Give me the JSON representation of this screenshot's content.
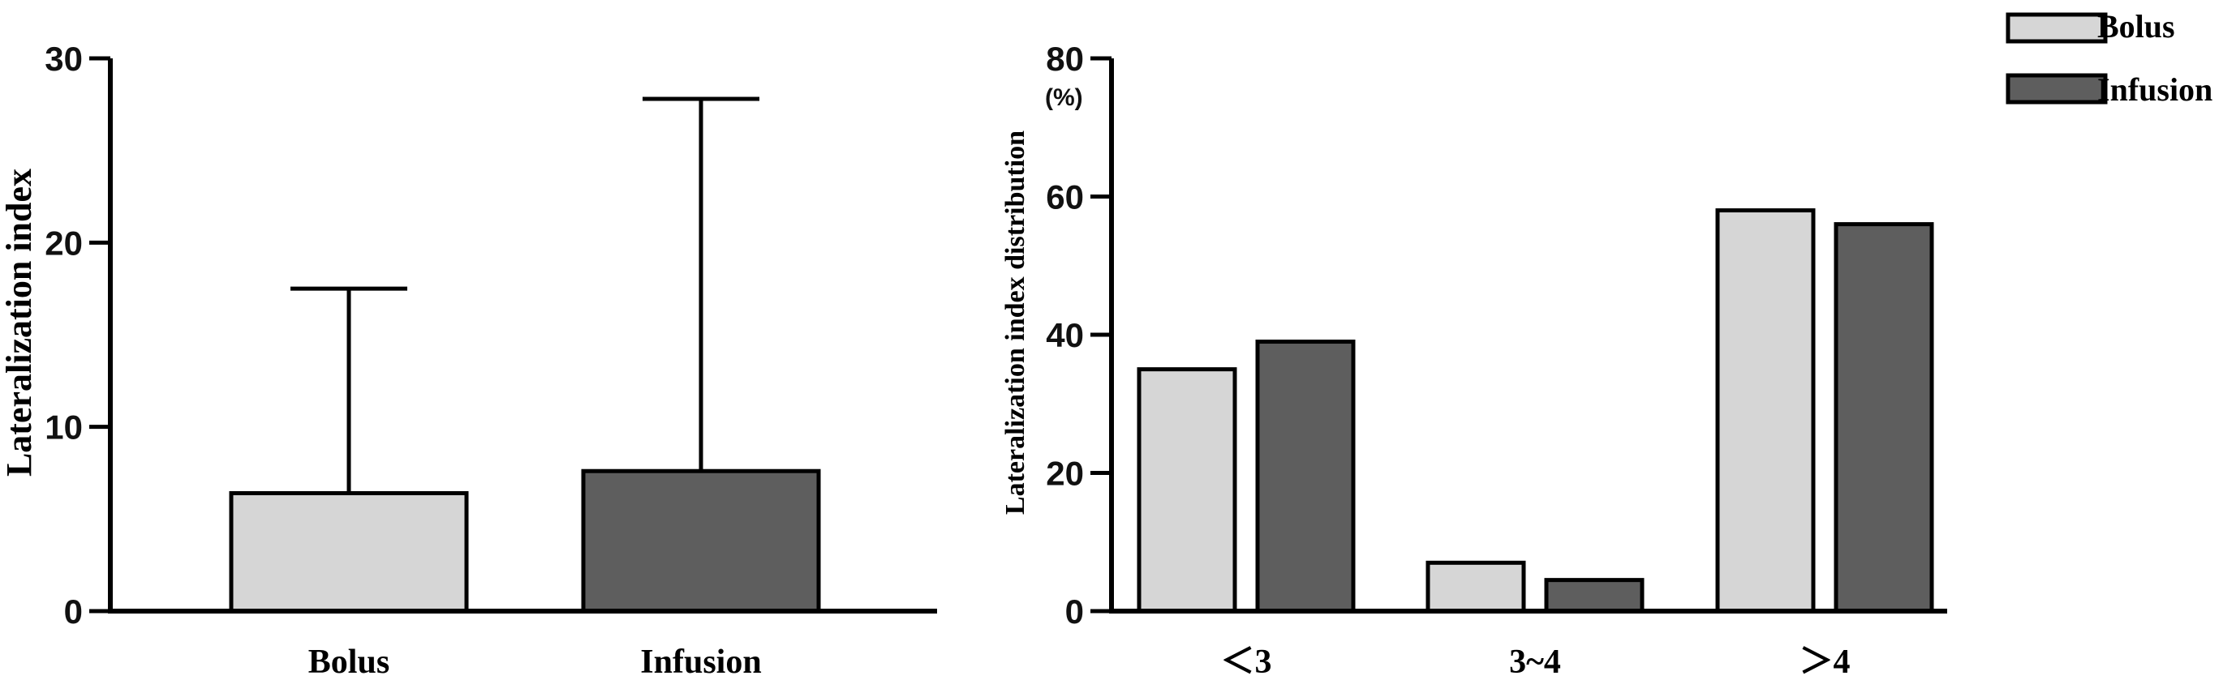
{
  "chart_data": [
    {
      "type": "bar",
      "categories": [
        "Bolus",
        "Infusion"
      ],
      "values": [
        6.4,
        7.6
      ],
      "error_upper": [
        17.5,
        27.8
      ],
      "ylabel": "Lateralization index",
      "ylim": [
        0,
        30
      ],
      "yticks": [
        0,
        10,
        20,
        30
      ],
      "colors": [
        "#d6d6d6",
        "#5e5e5e"
      ],
      "grid": false
    },
    {
      "type": "bar",
      "categories": [
        "＜3",
        "3~4",
        "＞4"
      ],
      "series": [
        {
          "name": "Bolus",
          "values": [
            35,
            7,
            58
          ],
          "color": "#d6d6d6"
        },
        {
          "name": "Infusion",
          "values": [
            39,
            4.5,
            56
          ],
          "color": "#5e5e5e"
        }
      ],
      "ylabel": "Lateralization index distribution",
      "yunit": "(%)",
      "ylim": [
        0,
        80
      ],
      "yticks": [
        0,
        20,
        40,
        60,
        80
      ],
      "legend": "top-right",
      "grid": false
    }
  ]
}
